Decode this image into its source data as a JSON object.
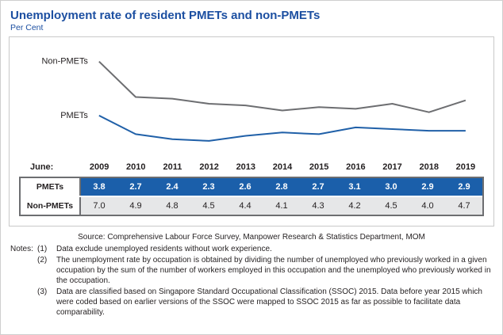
{
  "page": {
    "title": "Unemployment rate of resident PMETs and non-PMETs",
    "subtitle": "Per Cent"
  },
  "chart_data": {
    "type": "line",
    "x_label_prefix": "June:",
    "categories": [
      "2009",
      "2010",
      "2011",
      "2012",
      "2013",
      "2014",
      "2015",
      "2016",
      "2017",
      "2018",
      "2019"
    ],
    "series": [
      {
        "name": "Non-PMETs",
        "color": "#6d6e71",
        "values": [
          7.0,
          4.9,
          4.8,
          4.5,
          4.4,
          4.1,
          4.3,
          4.2,
          4.5,
          4.0,
          4.7
        ]
      },
      {
        "name": "PMETs",
        "color": "#2060a8",
        "values": [
          3.8,
          2.7,
          2.4,
          2.3,
          2.6,
          2.8,
          2.7,
          3.1,
          3.0,
          2.9,
          2.9
        ]
      }
    ],
    "ylim": [
      1.5,
      7.5
    ],
    "ylabel": "Per Cent",
    "grid": false,
    "legend_position": "inline-left"
  },
  "table": {
    "rows": [
      {
        "label": "PMETs",
        "values": [
          "3.8",
          "2.7",
          "2.4",
          "2.3",
          "2.6",
          "2.8",
          "2.7",
          "3.1",
          "3.0",
          "2.9",
          "2.9"
        ]
      },
      {
        "label": "Non-PMETs",
        "values": [
          "7.0",
          "4.9",
          "4.8",
          "4.5",
          "4.4",
          "4.1",
          "4.3",
          "4.2",
          "4.5",
          "4.0",
          "4.7"
        ]
      }
    ]
  },
  "source": "Source: Comprehensive Labour Force Survey, Manpower Research & Statistics Department, MOM",
  "notes": {
    "label": "Notes:",
    "items": [
      {
        "num": "(1)",
        "text": "Data exclude unemployed residents without work experience."
      },
      {
        "num": "(2)",
        "text": "The unemployment rate by occupation is obtained by dividing the number of unemployed who previously worked in a given occupation by the sum of the number of workers employed in this occupation and the unemployed who previously worked in the occupation."
      },
      {
        "num": "(3)",
        "text": "Data are classified based on Singapore Standard Occupational Classification (SSOC) 2015. Data before year 2015 which were coded based on earlier versions of the SSOC were mapped to SSOC 2015 as far as possible to facilitate data comparability."
      }
    ]
  }
}
